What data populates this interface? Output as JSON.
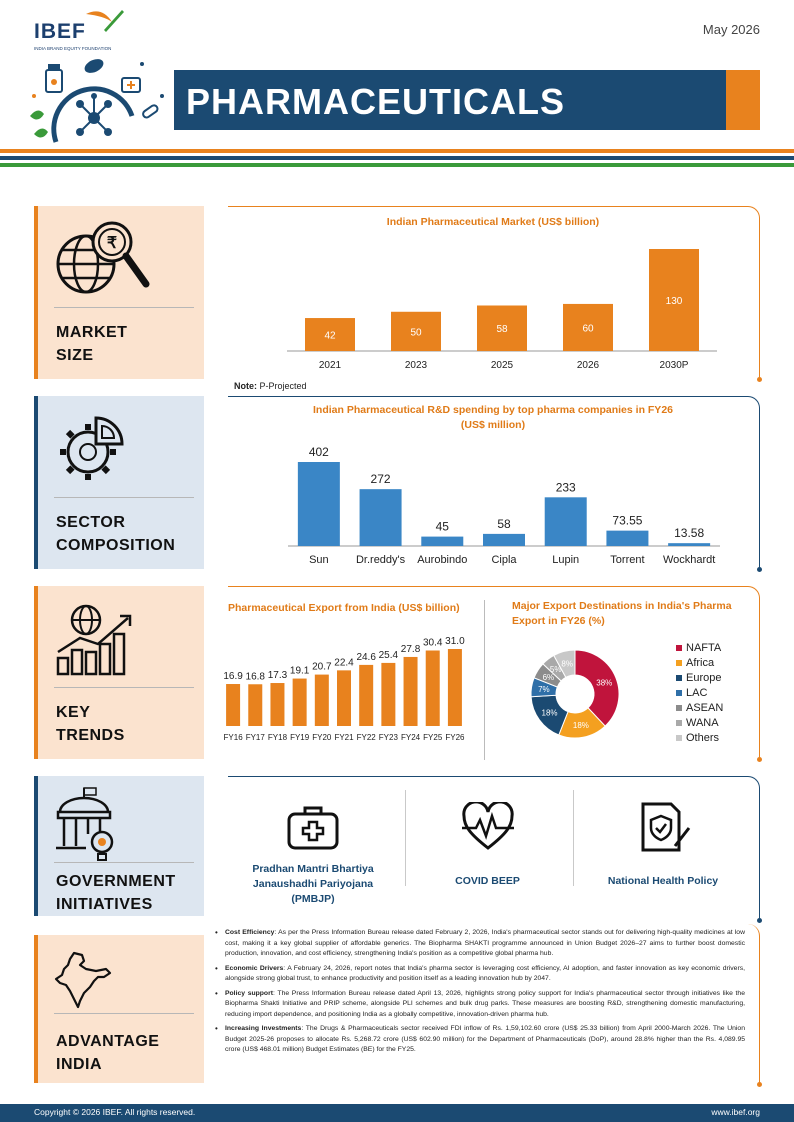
{
  "header": {
    "logo_text": "IBEF",
    "logo_subtitle": "INDIA BRAND EQUITY FOUNDATION",
    "date": "May 2026",
    "title": "PHARMACEUTICALS"
  },
  "colors": {
    "navy": "#1b4a72",
    "orange": "#e8821e",
    "green": "#3a9a3a",
    "bar_blue": "#3a86c6"
  },
  "sections": {
    "market_size": [
      "MARKET",
      "SIZE"
    ],
    "sector_composition": [
      "SECTOR",
      "COMPOSITION"
    ],
    "key_trends": [
      "KEY",
      "TRENDS"
    ],
    "government_initiatives": [
      "GOVERNMENT",
      "INITIATIVES"
    ],
    "advantage_india": [
      "ADVANTAGE",
      "INDIA"
    ]
  },
  "icons": {
    "market_size": "globe-rupee-magnifier-icon",
    "sector_composition": "gear-chart-icon",
    "key_trends": "globe-bar-chart-icon",
    "government_initiatives": "government-building-icon",
    "advantage_india": "india-map-icon"
  },
  "market_note": {
    "label": "Note:",
    "text": " P-Projected"
  },
  "chart_data": [
    {
      "type": "bar",
      "title": "Indian Pharmaceutical Market (US$ billion)",
      "categories": [
        "2021",
        "2023",
        "2025",
        "2026",
        "2030P"
      ],
      "values": [
        42,
        50,
        58,
        60,
        130
      ],
      "ylim": [
        0,
        130
      ],
      "color": "#e8821e",
      "grid": false,
      "legend": "none"
    },
    {
      "type": "bar",
      "title": "Indian Pharmaceutical R&D spending by top pharma companies in FY26 (US$ million)",
      "title_lines": [
        "Indian Pharmaceutical R&D spending by top pharma companies in FY26",
        "(US$ million)"
      ],
      "categories": [
        "Sun",
        "Dr.reddy's",
        "Aurobindo",
        "Cipla",
        "Lupin",
        "Torrent",
        "Wockhardt"
      ],
      "values": [
        402,
        272,
        45,
        58,
        233,
        73.55,
        13.58
      ],
      "value_labels": [
        "402",
        "272",
        "45",
        "58",
        "233",
        "73.55",
        "13.58"
      ],
      "ylim": [
        0,
        402
      ],
      "color": "#3a86c6",
      "grid": false,
      "legend": "none"
    },
    {
      "type": "bar",
      "title": "Pharmaceutical Export from India (US$ billion)",
      "categories": [
        "FY16",
        "FY17",
        "FY18",
        "FY19",
        "FY20",
        "FY21",
        "FY22",
        "FY23",
        "FY24",
        "FY25",
        "FY26"
      ],
      "values": [
        16.9,
        16.8,
        17.3,
        19.1,
        20.7,
        22.4,
        24.6,
        25.4,
        27.8,
        30.4,
        31.0
      ],
      "value_labels": [
        "16.9",
        "16.8",
        "17.3",
        "19.1",
        "20.7",
        "22.4",
        "24.6",
        "25.4",
        "27.8",
        "30.4",
        "31.0"
      ],
      "ylim": [
        0,
        31
      ],
      "color": "#e8821e",
      "grid": false,
      "legend": "none"
    },
    {
      "type": "pie",
      "title": "Major Export Destinations in India's Pharma Export in FY26 (%)",
      "title_lines": [
        "Major Export Destinations in India's Pharma",
        "Export in FY26 (%)"
      ],
      "categories": [
        "NAFTA",
        "Africa",
        "Europe",
        "LAC",
        "ASEAN",
        "WANA",
        "Others"
      ],
      "values": [
        38,
        18,
        18,
        7,
        6,
        5,
        8
      ],
      "value_labels": [
        "38%",
        "18%",
        "18%",
        "7%",
        "6%",
        "5%",
        "8%"
      ],
      "colors": [
        "#c0143c",
        "#f4a020",
        "#1b4a72",
        "#2f6fa8",
        "#8c8c8c",
        "#a9a9a9",
        "#c8c8c8"
      ],
      "donut": true,
      "legend": "right"
    }
  ],
  "government": [
    {
      "label_lines": [
        "Pradhan Mantri Bhartiya",
        "Janaushadhi Pariyojana",
        "(PMBJP)"
      ],
      "icon": "first-aid-kit-icon"
    },
    {
      "label_lines": [
        "COVID BEEP"
      ],
      "icon": "heart-pulse-icon"
    },
    {
      "label_lines": [
        "National Health Policy"
      ],
      "icon": "document-shield-icon"
    }
  ],
  "advantage": [
    {
      "heading": "Cost Efficiency",
      "text": ": As per the Press Information Bureau release dated February 2, 2026, India's pharmaceutical sector stands out for delivering high-quality medicines at low cost, making it a key global supplier of affordable generics. The Biopharma SHAKTI programme announced in Union Budget 2026–27 aims to further boost domestic production, innovation, and cost efficiency, strengthening India's position as a competitive global pharma hub."
    },
    {
      "heading": "Economic Drivers",
      "text": ": A February 24, 2026, report notes that India's pharma sector is leveraging cost efficiency, AI adoption, and faster innovation as key economic drivers, alongside strong global trust, to enhance productivity and position itself as a leading innovation hub by 2047."
    },
    {
      "heading": "Policy support",
      "text": ": The Press Information Bureau release dated April 13, 2026, highlights strong policy support for India's pharmaceutical sector through initiatives like the Biopharma Shakti Initiative and PRIP scheme, alongside PLI schemes and bulk drug parks. These measures are boosting R&D, strengthening domestic manufacturing, reducing import dependence, and positioning India as a globally competitive, innovation-driven pharma hub."
    },
    {
      "heading": "Increasing Investments",
      "text": ": The Drugs & Pharmaceuticals sector received FDI inflow of Rs. 1,59,102.60 crore (US$ 25.33 billion) from April 2000-March 2026. The Union Budget 2025-26 proposes to allocate Rs. 5,268.72 crore (US$ 602.90 million) for the Department of Pharmaceuticals (DoP), around 28.8% higher than the Rs. 4,089.95 crore (US$ 468.01 million) Budget Estimates (BE) for the FY25."
    }
  ],
  "footer": {
    "copyright": "Copyright © 2026 IBEF. All rights reserved.",
    "website": "www.ibef.org"
  }
}
